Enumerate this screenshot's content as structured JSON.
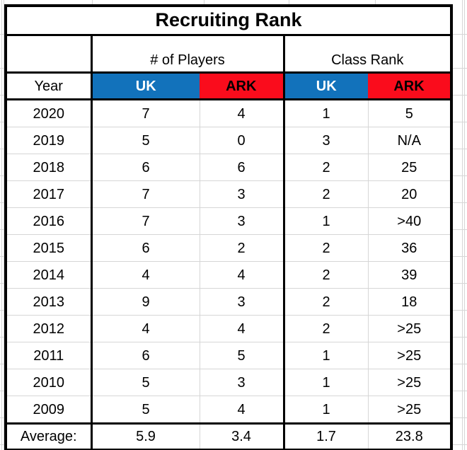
{
  "title": "Recruiting Rank",
  "chart_data": {
    "type": "table",
    "title": "Recruiting Rank",
    "group_headers": [
      {
        "label": "# of Players"
      },
      {
        "label": "Class Rank"
      }
    ],
    "year_column_label": "Year",
    "team_headers": [
      "UK",
      "ARK",
      "UK",
      "ARK"
    ],
    "rows": [
      {
        "year": "2020",
        "values": [
          "7",
          "4",
          "1",
          "5"
        ]
      },
      {
        "year": "2019",
        "values": [
          "5",
          "0",
          "3",
          "N/A"
        ]
      },
      {
        "year": "2018",
        "values": [
          "6",
          "6",
          "2",
          "25"
        ]
      },
      {
        "year": "2017",
        "values": [
          "7",
          "3",
          "2",
          "20"
        ]
      },
      {
        "year": "2016",
        "values": [
          "7",
          "3",
          "1",
          ">40"
        ]
      },
      {
        "year": "2015",
        "values": [
          "6",
          "2",
          "2",
          "36"
        ]
      },
      {
        "year": "2014",
        "values": [
          "4",
          "4",
          "2",
          "39"
        ]
      },
      {
        "year": "2013",
        "values": [
          "9",
          "3",
          "2",
          "18"
        ]
      },
      {
        "year": "2012",
        "values": [
          "4",
          "4",
          "2",
          ">25"
        ]
      },
      {
        "year": "2011",
        "values": [
          "6",
          "5",
          "1",
          ">25"
        ]
      },
      {
        "year": "2010",
        "values": [
          "5",
          "3",
          "1",
          ">25"
        ]
      },
      {
        "year": "2009",
        "values": [
          "5",
          "4",
          "1",
          ">25"
        ]
      }
    ],
    "average_label": "Average:",
    "averages": [
      "5.9",
      "3.4",
      "1.7",
      "23.8"
    ]
  },
  "colors": {
    "uk_blue": "#1272BB",
    "ark_red": "#FA0C1C",
    "uk_header_text": "#FFFFFF",
    "ark_header_text": "#000000",
    "table_border": "#000000",
    "gridline": "#D6D6D6"
  }
}
